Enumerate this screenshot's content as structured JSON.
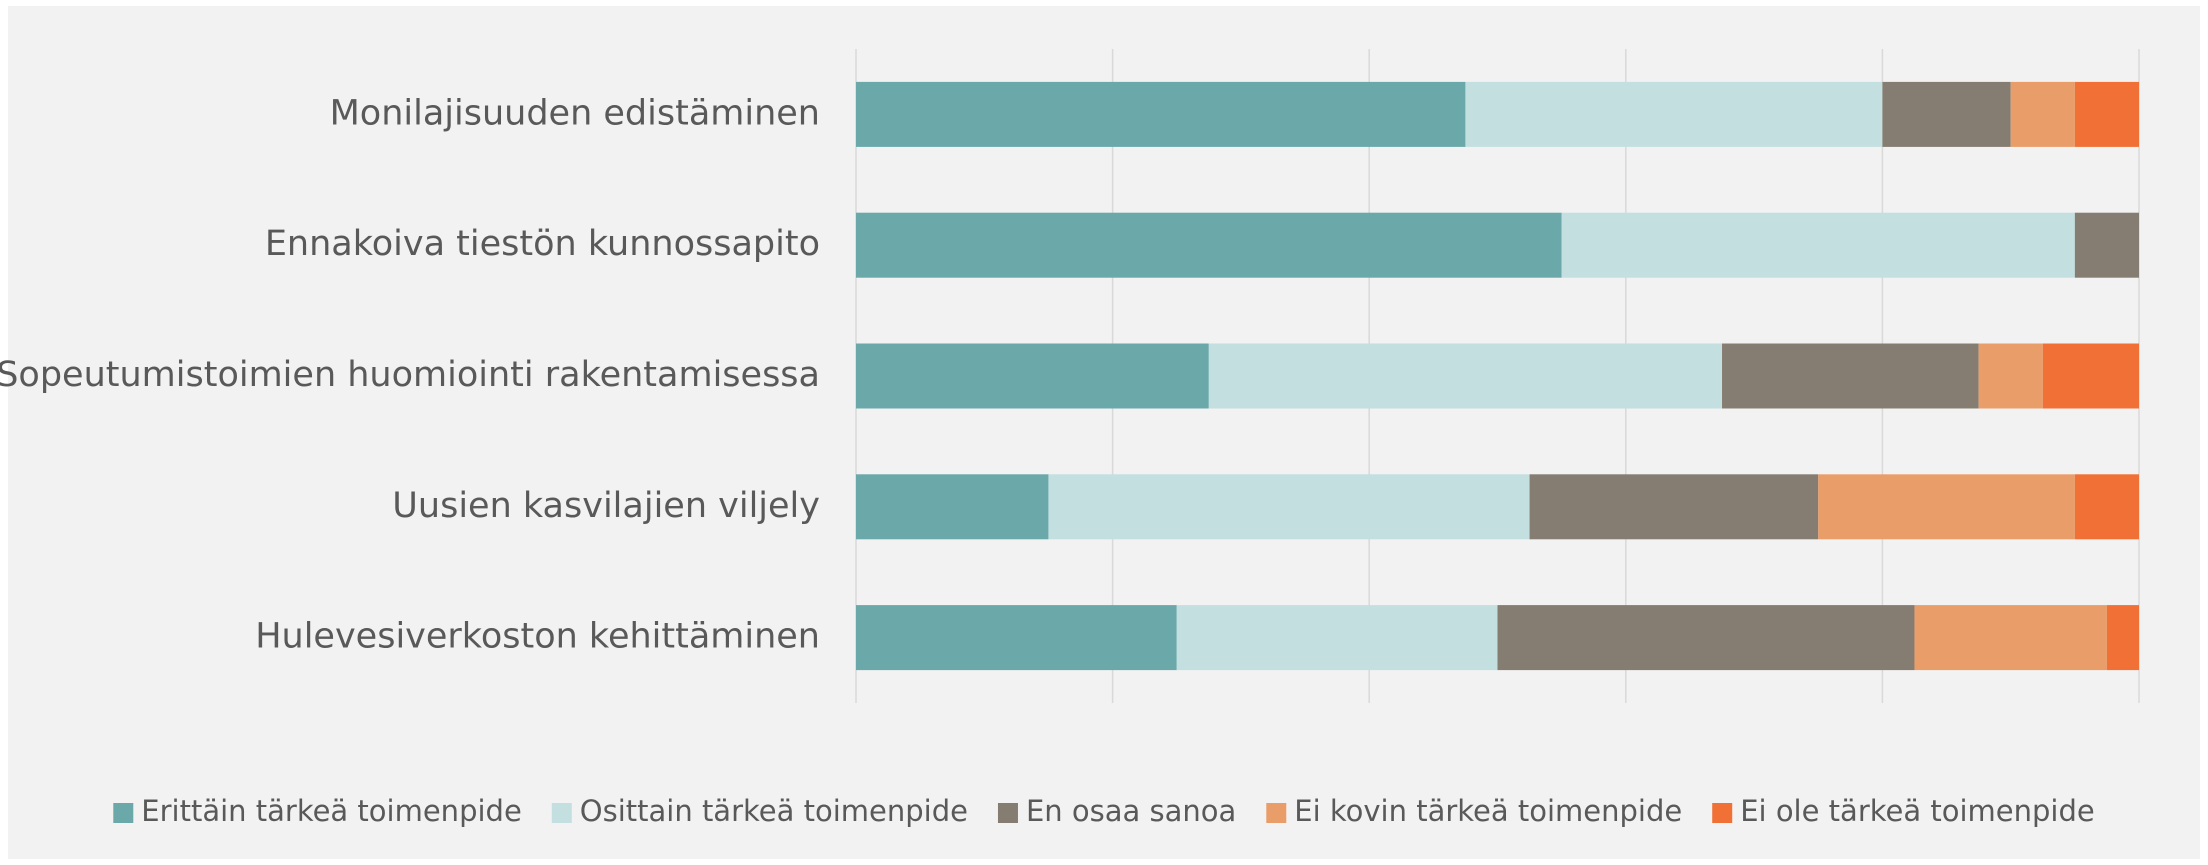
{
  "chart_data": {
    "type": "stacked_barh",
    "categories": [
      "Monilajisuuden edistäminen",
      "Ennakoiva tiestön kunnossapito",
      "Sopeutumistoimien huomiointi rakentamisessa",
      "Uusien kasvilajien viljely",
      "Hulevesiverkoston kehittäminen"
    ],
    "series": [
      {
        "name": "Erittäin tärkeä toimenpide",
        "color": "#6aa8aa",
        "values": [
          47.5,
          55,
          27.5,
          15,
          25
        ]
      },
      {
        "name": "Osittain tärkeä toimenpide",
        "color": "#c3dfe0",
        "values": [
          32.5,
          40,
          40,
          37.5,
          25
        ]
      },
      {
        "name": "En osaa sanoa",
        "color": "#857d71",
        "values": [
          10,
          5,
          20,
          22.5,
          32.5
        ]
      },
      {
        "name": "Ei kovin tärkeä toimenpide",
        "color": "#e99e6a",
        "values": [
          5,
          0,
          5,
          20,
          15
        ]
      },
      {
        "name": "Ei ole tärkeä toimenpide",
        "color": "#f07035",
        "values": [
          5,
          0,
          7.5,
          5,
          2.5
        ]
      }
    ],
    "xlim": [
      0,
      100
    ],
    "xticks": [
      0,
      20,
      40,
      60,
      80,
      100
    ],
    "grid": true,
    "legend": "bottom"
  }
}
